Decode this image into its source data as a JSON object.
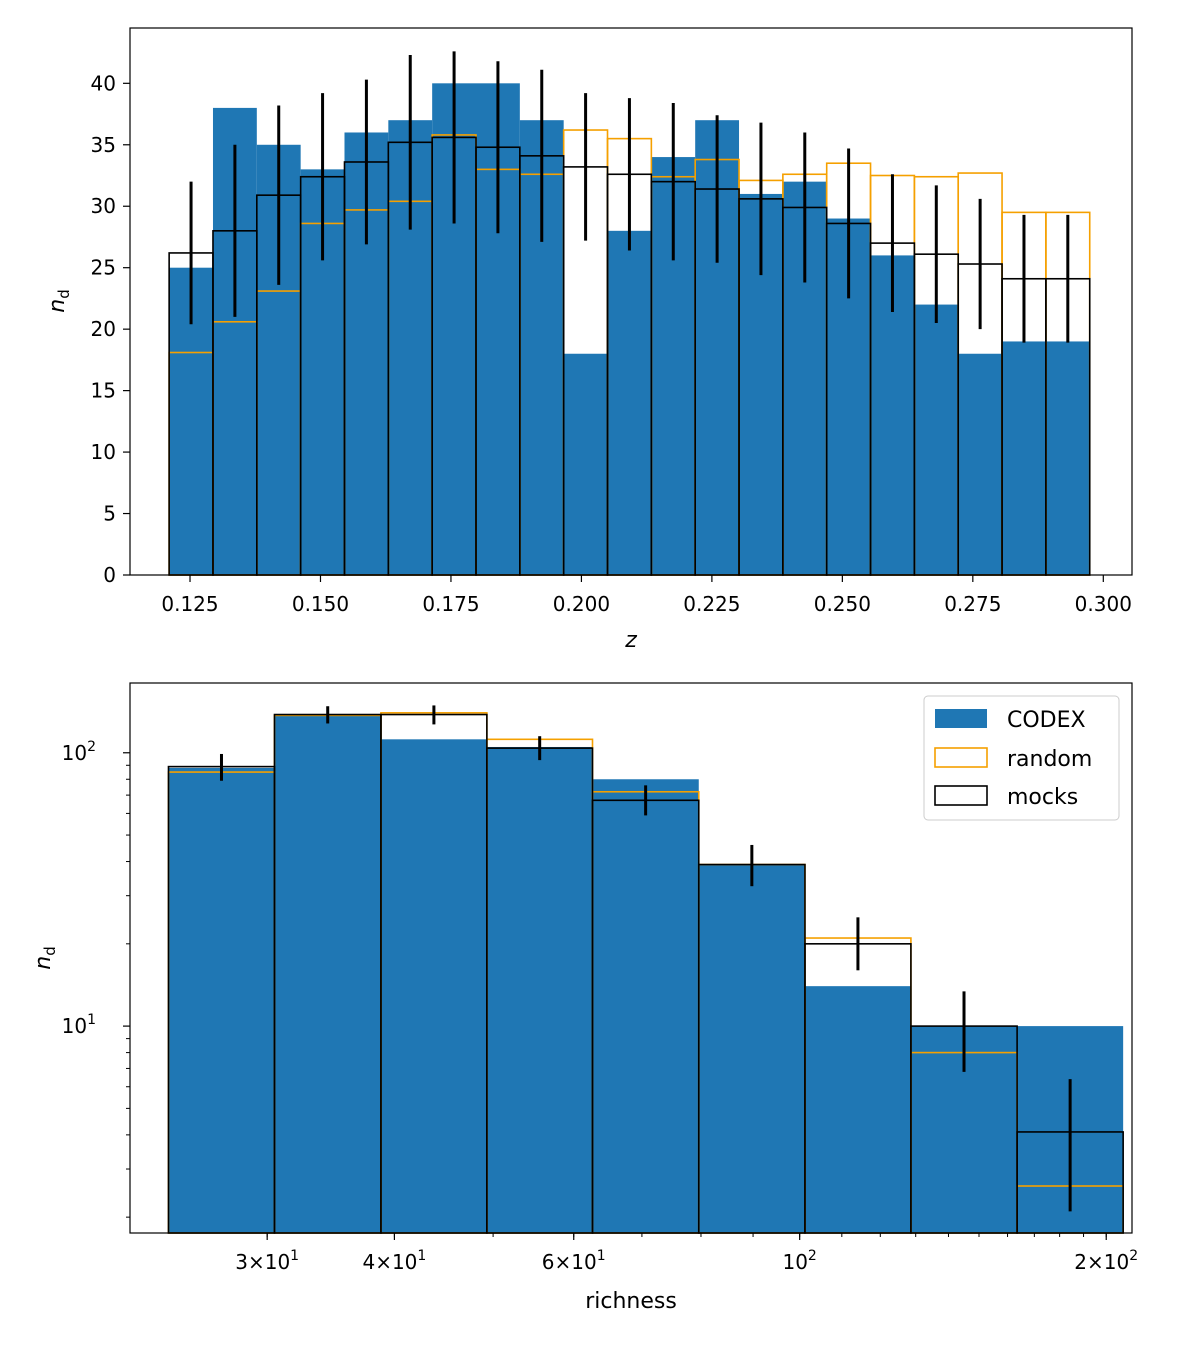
{
  "colors": {
    "codex": "#1f77b4",
    "random": "#f5a000",
    "mocks": "#000000"
  },
  "chart_data": [
    {
      "type": "bar",
      "panel": "top",
      "xlabel": "z",
      "ylabel": "n_d",
      "xlim": [
        0.1135,
        0.3055
      ],
      "ylim": [
        0,
        44.5
      ],
      "x_ticks": [
        {
          "value": 0.125,
          "label": "0.125"
        },
        {
          "value": 0.15,
          "label": "0.150"
        },
        {
          "value": 0.175,
          "label": "0.175"
        },
        {
          "value": 0.2,
          "label": "0.200"
        },
        {
          "value": 0.225,
          "label": "0.225"
        },
        {
          "value": 0.25,
          "label": "0.250"
        },
        {
          "value": 0.275,
          "label": "0.275"
        },
        {
          "value": 0.3,
          "label": "0.300"
        }
      ],
      "y_ticks": [
        {
          "value": 0,
          "label": "0"
        },
        {
          "value": 5,
          "label": "5"
        },
        {
          "value": 10,
          "label": "10"
        },
        {
          "value": 15,
          "label": "15"
        },
        {
          "value": 20,
          "label": "20"
        },
        {
          "value": 25,
          "label": "25"
        },
        {
          "value": 30,
          "label": "30"
        },
        {
          "value": 35,
          "label": "35"
        },
        {
          "value": 40,
          "label": "40"
        }
      ],
      "bin_edges": [
        0.121,
        0.1294,
        0.1378,
        0.1462,
        0.1546,
        0.163,
        0.1714,
        0.1798,
        0.1882,
        0.1966,
        0.205,
        0.2134,
        0.2218,
        0.2302,
        0.2386,
        0.247,
        0.2554,
        0.2638,
        0.2722,
        0.2806,
        0.289,
        0.2974
      ],
      "series": [
        {
          "name": "CODEX",
          "kind": "filled",
          "values": [
            25,
            38,
            35,
            33,
            36,
            37,
            40,
            40,
            37,
            18,
            28,
            34,
            37,
            31,
            32,
            29,
            26,
            22,
            18,
            19,
            19
          ]
        },
        {
          "name": "random",
          "kind": "step",
          "values": [
            18.1,
            20.6,
            23.1,
            28.6,
            29.7,
            30.4,
            35.8,
            33.0,
            32.6,
            36.2,
            35.5,
            32.4,
            33.8,
            32.1,
            32.6,
            33.5,
            32.5,
            32.4,
            32.7,
            29.5,
            29.5
          ]
        },
        {
          "name": "mocks",
          "kind": "step",
          "values": [
            26.2,
            28.0,
            30.9,
            32.4,
            33.6,
            35.2,
            35.6,
            34.8,
            34.1,
            33.2,
            32.6,
            32.0,
            31.4,
            30.6,
            29.9,
            28.6,
            27.0,
            26.1,
            25.3,
            24.1,
            24.1
          ],
          "errors": [
            5.8,
            7.0,
            7.3,
            6.8,
            6.7,
            7.1,
            7.0,
            7.0,
            7.0,
            6.0,
            6.2,
            6.4,
            6.0,
            6.2,
            6.1,
            6.1,
            5.6,
            5.6,
            5.3,
            5.2,
            5.2
          ]
        }
      ]
    },
    {
      "type": "bar",
      "panel": "bottom",
      "xscale": "log",
      "yscale": "log",
      "xlabel": "richness",
      "ylabel": "n_d",
      "xlim": [
        22.0,
        212.0
      ],
      "ylim": [
        1.75,
        180
      ],
      "x_ticks": [
        {
          "value": 30,
          "mantissa": "3",
          "exp": "1"
        },
        {
          "value": 40,
          "mantissa": "4",
          "exp": "1"
        },
        {
          "value": 60,
          "mantissa": "6",
          "exp": "1"
        },
        {
          "value": 100,
          "mantissa": "",
          "exp": "2"
        },
        {
          "value": 200,
          "mantissa": "2",
          "exp": "2"
        }
      ],
      "y_ticks": [
        {
          "value": 10,
          "exp": "1"
        },
        {
          "value": 100,
          "exp": "2"
        }
      ],
      "legend_position": "top-right",
      "bin_edges": [
        24.0,
        30.5,
        38.8,
        49.3,
        62.6,
        79.6,
        101.2,
        128.6,
        163.5,
        207.8
      ],
      "series": [
        {
          "name": "CODEX",
          "kind": "filled",
          "values": [
            88,
            138,
            112,
            105,
            80,
            39,
            14,
            10,
            10
          ]
        },
        {
          "name": "random",
          "kind": "step",
          "values": [
            85,
            137,
            140,
            112,
            72,
            39,
            21,
            8,
            2.6
          ]
        },
        {
          "name": "mocks",
          "kind": "step",
          "values": [
            89,
            138,
            138,
            104,
            67,
            39,
            20,
            10,
            4.1
          ],
          "errors_lo": [
            10,
            10,
            11,
            10,
            8,
            6.5,
            4.0,
            3.2,
            2.0
          ],
          "errors_hi": [
            10,
            10,
            11,
            11,
            9,
            7.0,
            5.0,
            3.4,
            2.3
          ]
        }
      ],
      "legend": [
        {
          "name": "CODEX"
        },
        {
          "name": "random"
        },
        {
          "name": "mocks"
        }
      ]
    }
  ]
}
